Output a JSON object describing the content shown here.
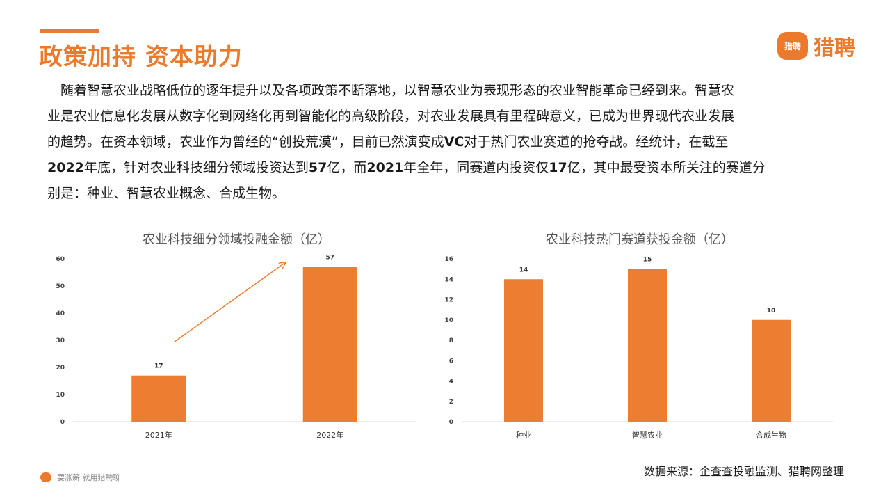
{
  "header": {
    "title": "政策加持 资本助力"
  },
  "logo": {
    "mark": "猎聘",
    "text": "猎聘"
  },
  "intro": {
    "lines": [
      [
        "　随着智慧农业战略低位的逐年提升以及各项政策不断落地，以智慧农业为表现形态的农业智能革命已经到来。智慧农"
      ],
      [
        "业是农业信息化发展从数字化到网络化再到智能化的高级阶段，对农业发展具有里程碑意义，已成为世界现代农业发展"
      ],
      [
        "的趋势。在资本领域，农业作为曾经的“创投荒漠”，目前已然演变成",
        {
          "b": "VC"
        },
        "对于热门农业赛道的抢夺战。经统计，在截至"
      ],
      [
        {
          "b": "2022"
        },
        "年底，针对农业科技细分领域投资达到",
        {
          "b": "57"
        },
        "亿，而",
        {
          "b": "2021"
        },
        "年全年，同赛道内投资仅",
        {
          "b": "17"
        },
        "亿，其中最受资本所关注的赛道分"
      ],
      [
        "别是：种业、智慧农业概念、合成生物。"
      ]
    ]
  },
  "chart_data": [
    {
      "type": "bar",
      "title": "农业科技细分领域投融金额（亿）",
      "categories": [
        "2021年",
        "2022年"
      ],
      "values": [
        17,
        57
      ],
      "ylim": [
        0,
        60
      ],
      "yticks": [
        0,
        10,
        20,
        30,
        40,
        50,
        60
      ],
      "data_labels": true,
      "grid": false,
      "annotation": "arrow-up-right",
      "color": "#ed7d31"
    },
    {
      "type": "bar",
      "title": "农业科技热门赛道获投金额（亿）",
      "categories": [
        "种业",
        "智慧农业",
        "合成生物"
      ],
      "values": [
        14,
        15,
        10
      ],
      "ylim": [
        0,
        16
      ],
      "yticks": [
        0,
        2,
        4,
        6,
        8,
        10,
        12,
        14,
        16
      ],
      "data_labels": true,
      "grid": false,
      "color": "#ed7d31"
    }
  ],
  "footer": {
    "source": "数据来源：企查查投融监测、猎聘网整理",
    "slogan": "要涨薪 就用猎聘聊"
  },
  "colors": {
    "accent": "#ec7a2c",
    "bar": "#ed7d31",
    "axis": "#d9d9d9"
  },
  "icons": {
    "brand": "liepin-logo-icon",
    "footer": "speech-bubble-icon"
  }
}
